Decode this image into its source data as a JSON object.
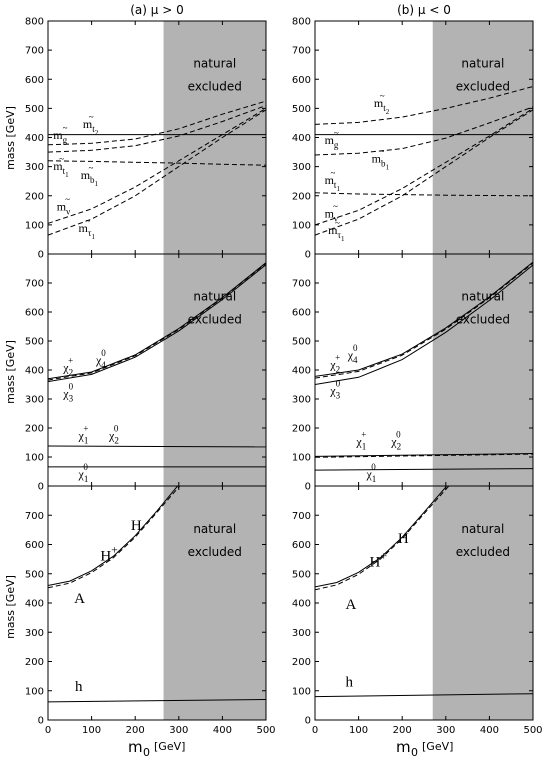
{
  "figure": {
    "x_label_main": "m",
    "x_label_sub": "0",
    "x_label_unit": "[GeV]",
    "y_label": "mass [GeV]",
    "shade_text_1": "natural",
    "shade_text_2": "excluded"
  },
  "chart_data": [
    {
      "type": "line",
      "column": "a",
      "row": 1,
      "title": "(a)  μ > 0",
      "xlim": [
        0,
        500
      ],
      "ylim": [
        0,
        800
      ],
      "xticks": [
        0,
        100,
        200,
        300,
        400,
        500
      ],
      "yticks": [
        0,
        100,
        200,
        300,
        400,
        500,
        600,
        700,
        800
      ],
      "shaded_region": [
        265,
        500
      ],
      "series": [
        {
          "style": "solid",
          "points": [
            [
              0,
              410
            ],
            [
              500,
              410
            ]
          ]
        },
        {
          "style": "dashed",
          "points": [
            [
              0,
              375
            ],
            [
              100,
              380
            ],
            [
              200,
              395
            ],
            [
              300,
              430
            ],
            [
              400,
              480
            ],
            [
              500,
              525
            ]
          ]
        },
        {
          "style": "dashed",
          "points": [
            [
              0,
              350
            ],
            [
              100,
              356
            ],
            [
              200,
              372
            ],
            [
              300,
              405
            ],
            [
              400,
              455
            ],
            [
              500,
              510
            ]
          ]
        },
        {
          "style": "dashed",
          "points": [
            [
              0,
              320
            ],
            [
              100,
              318
            ],
            [
              200,
              315
            ],
            [
              300,
              312
            ],
            [
              400,
              308
            ],
            [
              500,
              305
            ]
          ]
        },
        {
          "style": "dashed",
          "points": [
            [
              0,
              105
            ],
            [
              100,
              155
            ],
            [
              200,
              230
            ],
            [
              300,
              320
            ],
            [
              400,
              410
            ],
            [
              500,
              500
            ]
          ]
        },
        {
          "style": "dashed",
          "points": [
            [
              0,
              65
            ],
            [
              100,
              120
            ],
            [
              200,
              200
            ],
            [
              300,
              300
            ],
            [
              400,
              400
            ],
            [
              500,
              495
            ]
          ]
        }
      ],
      "labels": [
        {
          "base": "m",
          "sup": "~",
          "sub": "t",
          "sub2": "2",
          "x": 80,
          "y": 432
        },
        {
          "base": "m",
          "sup": "~",
          "sub": "g",
          "x": 12,
          "y": 395
        },
        {
          "base": "m",
          "sup": "~",
          "sub": "t",
          "sub2": "1",
          "x": 12,
          "y": 288
        },
        {
          "base": "m",
          "sup": "~",
          "sub": "b",
          "sub2": "1",
          "x": 75,
          "y": 258
        },
        {
          "base": "m",
          "sup": "~",
          "sub": "ν",
          "x": 20,
          "y": 150
        },
        {
          "base": "m",
          "sup": "~",
          "sub": "τ",
          "sub2": "1",
          "x": 70,
          "y": 75
        }
      ]
    },
    {
      "type": "line",
      "column": "b",
      "row": 1,
      "title": "(b)  μ < 0",
      "xlim": [
        0,
        500
      ],
      "ylim": [
        0,
        800
      ],
      "xticks": [
        0,
        100,
        200,
        300,
        400,
        500
      ],
      "yticks": [
        0,
        100,
        200,
        300,
        400,
        500,
        600,
        700,
        800
      ],
      "shaded_region": [
        270,
        500
      ],
      "series": [
        {
          "style": "solid",
          "points": [
            [
              0,
              410
            ],
            [
              500,
              410
            ]
          ]
        },
        {
          "style": "dashed",
          "points": [
            [
              0,
              445
            ],
            [
              100,
              452
            ],
            [
              200,
              470
            ],
            [
              300,
              500
            ],
            [
              400,
              535
            ],
            [
              500,
              575
            ]
          ]
        },
        {
          "style": "dashed",
          "points": [
            [
              0,
              340
            ],
            [
              100,
              346
            ],
            [
              200,
              362
            ],
            [
              300,
              398
            ],
            [
              400,
              450
            ],
            [
              500,
              505
            ]
          ]
        },
        {
          "style": "dashed",
          "points": [
            [
              0,
              210
            ],
            [
              100,
              206
            ],
            [
              200,
              204
            ],
            [
              300,
              202
            ],
            [
              400,
              201
            ],
            [
              500,
              200
            ]
          ]
        },
        {
          "style": "dashed",
          "points": [
            [
              0,
              100
            ],
            [
              100,
              150
            ],
            [
              200,
              225
            ],
            [
              300,
              315
            ],
            [
              400,
              405
            ],
            [
              500,
              500
            ]
          ]
        },
        {
          "style": "dashed",
          "points": [
            [
              0,
              65
            ],
            [
              100,
              120
            ],
            [
              200,
              200
            ],
            [
              300,
              300
            ],
            [
              400,
              400
            ],
            [
              500,
              495
            ]
          ]
        }
      ],
      "labels": [
        {
          "base": "m",
          "sup": "~",
          "sub": "t",
          "sub2": "2",
          "x": 135,
          "y": 505
        },
        {
          "base": "m",
          "sup": "~",
          "sub": "g",
          "x": 22,
          "y": 378
        },
        {
          "base": "m",
          "sup": "~",
          "sub": "b",
          "sub2": "1",
          "x": 130,
          "y": 315
        },
        {
          "base": "m",
          "sup": "~",
          "sub": "t",
          "sub2": "1",
          "x": 22,
          "y": 240
        },
        {
          "base": "m",
          "sup": "~",
          "sub": "ν",
          "x": 22,
          "y": 125
        },
        {
          "base": "m",
          "sup": "~",
          "sub": "τ",
          "sub2": "1",
          "x": 30,
          "y": 68
        }
      ]
    },
    {
      "type": "line",
      "column": "a",
      "row": 2,
      "xlim": [
        0,
        500
      ],
      "ylim": [
        0,
        800
      ],
      "xticks": [
        0,
        100,
        200,
        300,
        400,
        500
      ],
      "yticks": [
        0,
        100,
        200,
        300,
        400,
        500,
        600,
        700
      ],
      "shaded_region": [
        265,
        500
      ],
      "series": [
        {
          "style": "solid",
          "points": [
            [
              0,
              370
            ],
            [
              100,
              393
            ],
            [
              200,
              452
            ],
            [
              300,
              543
            ],
            [
              400,
              650
            ],
            [
              500,
              770
            ]
          ]
        },
        {
          "style": "dashed",
          "points": [
            [
              0,
              365
            ],
            [
              100,
              390
            ],
            [
              200,
              449
            ],
            [
              300,
              540
            ],
            [
              400,
              648
            ],
            [
              500,
              768
            ]
          ]
        },
        {
          "style": "solid",
          "points": [
            [
              0,
              360
            ],
            [
              100,
              385
            ],
            [
              200,
              444
            ],
            [
              300,
              535
            ],
            [
              400,
              643
            ],
            [
              500,
              763
            ]
          ]
        },
        {
          "style": "solid",
          "points": [
            [
              0,
              138
            ],
            [
              500,
              135
            ]
          ]
        },
        {
          "style": "solid",
          "points": [
            [
              0,
              66
            ],
            [
              500,
              66
            ]
          ]
        }
      ],
      "labels": [
        {
          "base": "χ",
          "sup": "+",
          "sub": "2",
          "x": 35,
          "y": 395
        },
        {
          "base": "χ",
          "sup": "0",
          "sub": "4",
          "x": 110,
          "y": 420
        },
        {
          "base": "χ",
          "sup": "0",
          "sub": "3",
          "x": 35,
          "y": 305
        },
        {
          "base": "χ",
          "sup": "+",
          "sub": "1",
          "x": 70,
          "y": 160
        },
        {
          "base": "χ",
          "sup": "0",
          "sub": "2",
          "x": 140,
          "y": 160
        },
        {
          "base": "χ",
          "sup": "0",
          "sub": "1",
          "x": 70,
          "y": 28
        }
      ]
    },
    {
      "type": "line",
      "column": "b",
      "row": 2,
      "xlim": [
        0,
        500
      ],
      "ylim": [
        0,
        800
      ],
      "xticks": [
        0,
        100,
        200,
        300,
        400,
        500
      ],
      "yticks": [
        0,
        100,
        200,
        300,
        400,
        500,
        600,
        700
      ],
      "shaded_region": [
        270,
        500
      ],
      "series": [
        {
          "style": "solid",
          "points": [
            [
              0,
              378
            ],
            [
              100,
              400
            ],
            [
              200,
              455
            ],
            [
              300,
              545
            ],
            [
              400,
              652
            ],
            [
              500,
              772
            ]
          ]
        },
        {
          "style": "dashed",
          "points": [
            [
              0,
              372
            ],
            [
              100,
              395
            ],
            [
              200,
              451
            ],
            [
              300,
              541
            ],
            [
              400,
              649
            ],
            [
              500,
              769
            ]
          ]
        },
        {
          "style": "solid",
          "points": [
            [
              0,
              350
            ],
            [
              100,
              375
            ],
            [
              200,
              436
            ],
            [
              300,
              530
            ],
            [
              400,
              640
            ],
            [
              500,
              762
            ]
          ]
        },
        {
          "style": "solid",
          "points": [
            [
              0,
              102
            ],
            [
              500,
              112
            ]
          ]
        },
        {
          "style": "dashed",
          "points": [
            [
              0,
              99
            ],
            [
              500,
              110
            ]
          ]
        },
        {
          "style": "solid",
          "points": [
            [
              0,
              55
            ],
            [
              500,
              60
            ]
          ]
        }
      ],
      "labels": [
        {
          "base": "χ",
          "sup": "+",
          "sub": "2",
          "x": 35,
          "y": 405
        },
        {
          "base": "χ",
          "sup": "0",
          "sub": "4",
          "x": 75,
          "y": 438
        },
        {
          "base": "χ",
          "sup": "0",
          "sub": "3",
          "x": 35,
          "y": 315
        },
        {
          "base": "χ",
          "sup": "+",
          "sub": "1",
          "x": 95,
          "y": 140
        },
        {
          "base": "χ",
          "sup": "0",
          "sub": "2",
          "x": 175,
          "y": 140
        },
        {
          "base": "χ",
          "sup": "0",
          "sub": "1",
          "x": 118,
          "y": 28
        }
      ]
    },
    {
      "type": "line",
      "column": "a",
      "row": 3,
      "xlim": [
        0,
        500
      ],
      "ylim": [
        0,
        800
      ],
      "xticks": [
        0,
        100,
        200,
        300,
        400,
        500
      ],
      "yticks": [
        0,
        100,
        200,
        300,
        400,
        500,
        600,
        700
      ],
      "shaded_region": [
        265,
        500
      ],
      "series": [
        {
          "style": "solid",
          "points": [
            [
              0,
              460
            ],
            [
              50,
              475
            ],
            [
              100,
              510
            ],
            [
              150,
              560
            ],
            [
              200,
              630
            ],
            [
              250,
              715
            ],
            [
              300,
              805
            ]
          ]
        },
        {
          "style": "dashed",
          "points": [
            [
              0,
              452
            ],
            [
              50,
              468
            ],
            [
              100,
              504
            ],
            [
              150,
              555
            ],
            [
              200,
              625
            ],
            [
              250,
              710
            ],
            [
              305,
              805
            ]
          ]
        },
        {
          "style": "solid",
          "points": [
            [
              0,
              62
            ],
            [
              500,
              70
            ]
          ]
        }
      ],
      "labels": [
        {
          "base": "H",
          "x": 190,
          "y": 650,
          "size": "big"
        },
        {
          "base": "H",
          "sup": "+",
          "x": 120,
          "y": 545,
          "size": "big"
        },
        {
          "base": "A",
          "x": 60,
          "y": 400,
          "size": "big"
        },
        {
          "base": "h",
          "x": 62,
          "y": 100,
          "size": "big"
        }
      ]
    },
    {
      "type": "line",
      "column": "b",
      "row": 3,
      "xlim": [
        0,
        500
      ],
      "ylim": [
        0,
        800
      ],
      "xticks": [
        0,
        100,
        200,
        300,
        400,
        500
      ],
      "yticks": [
        0,
        100,
        200,
        300,
        400,
        500,
        600,
        700
      ],
      "shaded_region": [
        270,
        500
      ],
      "series": [
        {
          "style": "solid",
          "points": [
            [
              0,
              455
            ],
            [
              50,
              470
            ],
            [
              100,
              505
            ],
            [
              150,
              555
            ],
            [
              200,
              625
            ],
            [
              250,
              710
            ],
            [
              305,
              805
            ]
          ]
        },
        {
          "style": "dashed",
          "points": [
            [
              0,
              445
            ],
            [
              50,
              462
            ],
            [
              100,
              498
            ],
            [
              150,
              550
            ],
            [
              200,
              620
            ],
            [
              250,
              705
            ],
            [
              310,
              805
            ]
          ]
        },
        {
          "style": "solid",
          "points": [
            [
              0,
              80
            ],
            [
              500,
              90
            ]
          ]
        }
      ],
      "labels": [
        {
          "base": "H",
          "x": 190,
          "y": 605,
          "size": "big"
        },
        {
          "base": "H",
          "sup": "+",
          "x": 125,
          "y": 525,
          "size": "big"
        },
        {
          "base": "A",
          "x": 70,
          "y": 380,
          "size": "big"
        },
        {
          "base": "h",
          "x": 70,
          "y": 115,
          "size": "big"
        }
      ]
    }
  ]
}
